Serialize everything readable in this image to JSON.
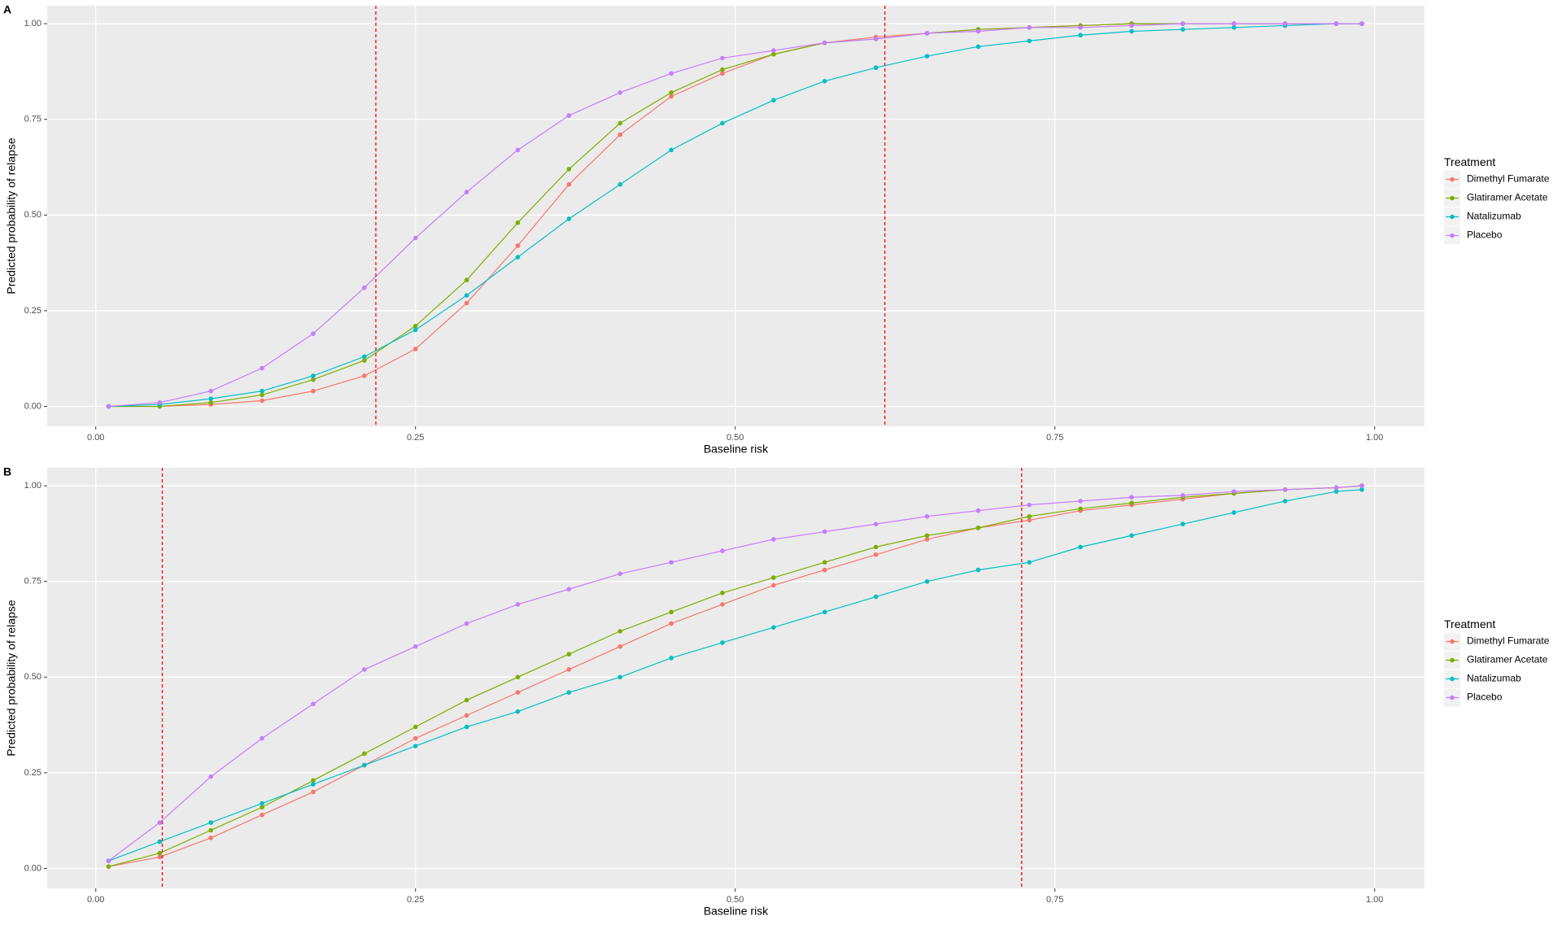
{
  "chart_data": [
    {
      "type": "line",
      "panel_label": "A",
      "xlabel": "Baseline risk",
      "ylabel": "Predicted probability of relapse",
      "legend_title": "Treatment",
      "legend": "right",
      "grid": true,
      "xlim": [
        -0.038,
        1.039
      ],
      "ylim": [
        -0.052,
        1.047
      ],
      "xticks": [
        {
          "value": 0,
          "label": "0.00"
        },
        {
          "value": 0.25,
          "label": "0.25"
        },
        {
          "value": 0.5,
          "label": "0.50"
        },
        {
          "value": 0.75,
          "label": "0.75"
        },
        {
          "value": 1,
          "label": "1.00"
        }
      ],
      "yticks": [
        {
          "value": 0,
          "label": "0.00"
        },
        {
          "value": 0.25,
          "label": "0.25"
        },
        {
          "value": 0.5,
          "label": "0.50"
        },
        {
          "value": 0.75,
          "label": "0.75"
        },
        {
          "value": 1,
          "label": "1.00"
        }
      ],
      "reference_lines": [
        0.219,
        0.617
      ],
      "reference_color": "#ff0000",
      "x": [
        0.01,
        0.05,
        0.09,
        0.13,
        0.17,
        0.21,
        0.25,
        0.29,
        0.33,
        0.37,
        0.41,
        0.45,
        0.49,
        0.53,
        0.57,
        0.61,
        0.65,
        0.69,
        0.73,
        0.77,
        0.81,
        0.85,
        0.89,
        0.93,
        0.97,
        0.99
      ],
      "series": [
        {
          "name": "Dimethyl Fumarate",
          "color": "#F8766D",
          "values": [
            0,
            0,
            0.005,
            0.015,
            0.04,
            0.08,
            0.15,
            0.27,
            0.42,
            0.58,
            0.71,
            0.81,
            0.87,
            0.92,
            0.95,
            0.965,
            0.975,
            0.985,
            0.99,
            0.995,
            1,
            1,
            1,
            1,
            1,
            1
          ]
        },
        {
          "name": "Glatiramer Acetate",
          "color": "#7CAE00",
          "values": [
            0,
            0,
            0.01,
            0.03,
            0.07,
            0.12,
            0.21,
            0.33,
            0.48,
            0.62,
            0.74,
            0.82,
            0.88,
            0.92,
            0.95,
            0.96,
            0.975,
            0.985,
            0.99,
            0.995,
            1,
            1,
            1,
            1,
            1,
            1
          ]
        },
        {
          "name": "Natalizumab",
          "color": "#00BFC4",
          "values": [
            0,
            0.005,
            0.02,
            0.04,
            0.08,
            0.13,
            0.2,
            0.29,
            0.39,
            0.49,
            0.58,
            0.67,
            0.74,
            0.8,
            0.85,
            0.885,
            0.915,
            0.94,
            0.955,
            0.97,
            0.98,
            0.985,
            0.99,
            0.995,
            1,
            1
          ]
        },
        {
          "name": "Placebo",
          "color": "#C77CFF",
          "values": [
            0,
            0.01,
            0.04,
            0.1,
            0.19,
            0.31,
            0.44,
            0.56,
            0.67,
            0.76,
            0.82,
            0.87,
            0.91,
            0.93,
            0.95,
            0.96,
            0.975,
            0.98,
            0.99,
            0.99,
            0.995,
            1,
            1,
            1,
            1,
            1
          ]
        }
      ]
    },
    {
      "type": "line",
      "panel_label": "B",
      "xlabel": "Baseline risk",
      "ylabel": "Predicted probability of relapse",
      "legend_title": "Treatment",
      "legend": "right",
      "grid": true,
      "xlim": [
        -0.038,
        1.039
      ],
      "ylim": [
        -0.052,
        1.047
      ],
      "xticks": [
        {
          "value": 0,
          "label": "0.00"
        },
        {
          "value": 0.25,
          "label": "0.25"
        },
        {
          "value": 0.5,
          "label": "0.50"
        },
        {
          "value": 0.75,
          "label": "0.75"
        },
        {
          "value": 1,
          "label": "1.00"
        }
      ],
      "yticks": [
        {
          "value": 0,
          "label": "0.00"
        },
        {
          "value": 0.25,
          "label": "0.25"
        },
        {
          "value": 0.5,
          "label": "0.50"
        },
        {
          "value": 0.75,
          "label": "0.75"
        },
        {
          "value": 1,
          "label": "1.00"
        }
      ],
      "reference_lines": [
        0.052,
        0.724
      ],
      "reference_color": "#ff0000",
      "x": [
        0.01,
        0.05,
        0.09,
        0.13,
        0.17,
        0.21,
        0.25,
        0.29,
        0.33,
        0.37,
        0.41,
        0.45,
        0.49,
        0.53,
        0.57,
        0.61,
        0.65,
        0.69,
        0.73,
        0.77,
        0.81,
        0.85,
        0.89,
        0.93,
        0.97,
        0.99
      ],
      "series": [
        {
          "name": "Dimethyl Fumarate",
          "color": "#F8766D",
          "values": [
            0.005,
            0.03,
            0.08,
            0.14,
            0.2,
            0.27,
            0.34,
            0.4,
            0.46,
            0.52,
            0.58,
            0.64,
            0.69,
            0.74,
            0.78,
            0.82,
            0.86,
            0.89,
            0.91,
            0.935,
            0.95,
            0.965,
            0.98,
            0.99,
            0.995,
            1
          ]
        },
        {
          "name": "Glatiramer Acetate",
          "color": "#7CAE00",
          "values": [
            0.005,
            0.04,
            0.1,
            0.16,
            0.23,
            0.3,
            0.37,
            0.44,
            0.5,
            0.56,
            0.62,
            0.67,
            0.72,
            0.76,
            0.8,
            0.84,
            0.87,
            0.89,
            0.92,
            0.94,
            0.955,
            0.97,
            0.98,
            0.99,
            0.995,
            1
          ]
        },
        {
          "name": "Natalizumab",
          "color": "#00BFC4",
          "values": [
            0.02,
            0.07,
            0.12,
            0.17,
            0.22,
            0.27,
            0.32,
            0.37,
            0.41,
            0.46,
            0.5,
            0.55,
            0.59,
            0.63,
            0.67,
            0.71,
            0.75,
            0.78,
            0.8,
            0.84,
            0.87,
            0.9,
            0.93,
            0.96,
            0.985,
            0.99
          ]
        },
        {
          "name": "Placebo",
          "color": "#C77CFF",
          "values": [
            0.02,
            0.12,
            0.24,
            0.34,
            0.43,
            0.52,
            0.58,
            0.64,
            0.69,
            0.73,
            0.77,
            0.8,
            0.83,
            0.86,
            0.88,
            0.9,
            0.92,
            0.935,
            0.95,
            0.96,
            0.97,
            0.975,
            0.985,
            0.99,
            0.995,
            1
          ]
        }
      ]
    }
  ]
}
